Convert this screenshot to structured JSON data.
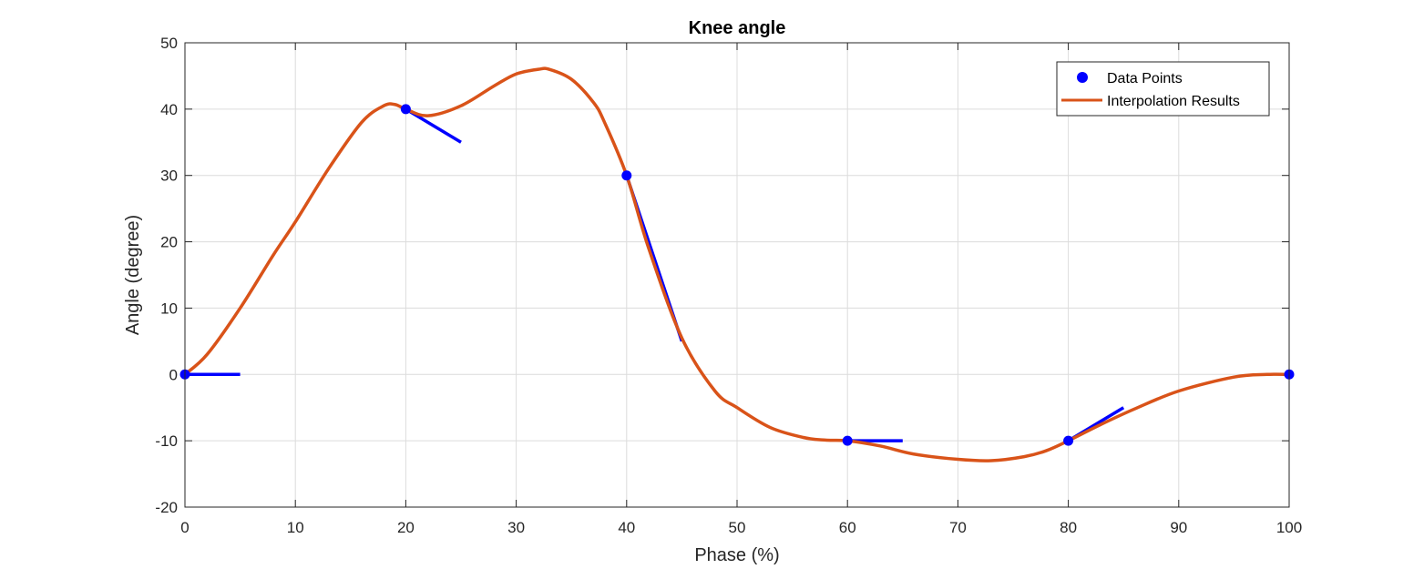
{
  "chart_data": {
    "type": "line",
    "title": "Knee angle",
    "xlabel": "Phase (%)",
    "ylabel": "Angle (degree)",
    "xlim": [
      0,
      100
    ],
    "ylim": [
      -20,
      50
    ],
    "xticks": [
      0,
      10,
      20,
      30,
      40,
      50,
      60,
      70,
      80,
      90,
      100
    ],
    "yticks": [
      -20,
      -10,
      0,
      10,
      20,
      30,
      40,
      50
    ],
    "grid": true,
    "legend": {
      "placement": "top-right",
      "entries": [
        "Data Points",
        "Interpolation Results"
      ]
    },
    "series": [
      {
        "name": "Data Points",
        "kind": "markers",
        "color": "#0000FF",
        "x": [
          0,
          20,
          40,
          60,
          80,
          100
        ],
        "y": [
          0,
          40,
          30,
          -10,
          -10,
          0
        ]
      },
      {
        "name": "Interpolation Results",
        "kind": "line",
        "color": "#D95319",
        "x": [
          0,
          2,
          5,
          8,
          10,
          13,
          16,
          18,
          19,
          20,
          22,
          25,
          28,
          30,
          32,
          33,
          35,
          37,
          38,
          40,
          42,
          45,
          48,
          50,
          53,
          56,
          58,
          60,
          63,
          66,
          70,
          73,
          76,
          78,
          80,
          83,
          86,
          90,
          95,
          98,
          100
        ],
        "y": [
          0,
          3,
          10,
          18,
          23,
          31,
          38,
          40.5,
          40.7,
          40,
          39,
          40.5,
          43.5,
          45.3,
          46,
          46,
          44.5,
          41,
          38,
          30,
          19,
          5.5,
          -2.5,
          -5,
          -8,
          -9.5,
          -9.9,
          -10,
          -10.8,
          -12,
          -12.8,
          -13,
          -12.4,
          -11.5,
          -10,
          -7.5,
          -5.2,
          -2.5,
          -0.4,
          0,
          0
        ]
      }
    ],
    "tangents": [
      {
        "x": [
          0,
          5
        ],
        "y": [
          0,
          0
        ]
      },
      {
        "x": [
          20,
          25
        ],
        "y": [
          40,
          35
        ]
      },
      {
        "x": [
          40,
          45
        ],
        "y": [
          30,
          5
        ]
      },
      {
        "x": [
          60,
          65
        ],
        "y": [
          -10,
          -10
        ]
      },
      {
        "x": [
          80,
          85
        ],
        "y": [
          -10,
          -5
        ]
      }
    ]
  }
}
